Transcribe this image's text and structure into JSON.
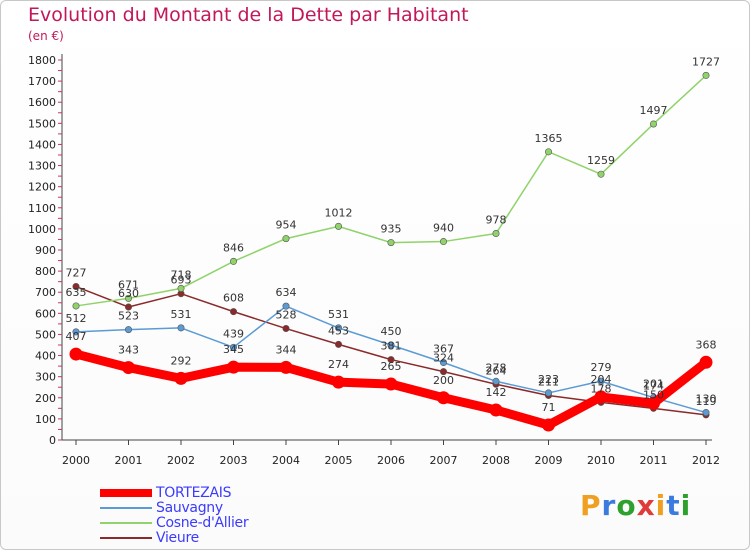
{
  "header": {
    "title": "Evolution du Montant de la Dette par Habitant",
    "subtitle": "(en €)"
  },
  "logo": {
    "text": "Proxiti",
    "colors": [
      "#f0a020",
      "#3b7be0",
      "#2ea02e",
      "#e03b3b",
      "#f0a020",
      "#3b7be0",
      "#2ea02e"
    ]
  },
  "chart_data": {
    "type": "line",
    "title": "Evolution du Montant de la Dette par Habitant",
    "subtitle": "(en €)",
    "xlabel": "",
    "ylabel": "",
    "x": [
      "2000",
      "2001",
      "2002",
      "2003",
      "2004",
      "2005",
      "2006",
      "2007",
      "2008",
      "2009",
      "2010",
      "2011",
      "2012"
    ],
    "yticks": [
      0,
      100,
      200,
      300,
      400,
      500,
      600,
      700,
      800,
      900,
      1000,
      1100,
      1200,
      1300,
      1400,
      1500,
      1600,
      1700,
      1800
    ],
    "ylim": [
      0,
      1800
    ],
    "grid": false,
    "legend_position": "bottom-left",
    "series": [
      {
        "name": "TORTEZAIS",
        "color": "#ff0000",
        "values": [
          407,
          343,
          292,
          345,
          344,
          274,
          265,
          200,
          142,
          71,
          204,
          174,
          368
        ]
      },
      {
        "name": "Sauvagny",
        "color": "#5b9bd5",
        "values": [
          512,
          523,
          531,
          439,
          634,
          531,
          450,
          367,
          278,
          223,
          279,
          201,
          130
        ]
      },
      {
        "name": "Cosne-d'Allier",
        "color": "#8fd36a",
        "values": [
          635,
          671,
          718,
          846,
          954,
          1012,
          935,
          940,
          978,
          1365,
          1259,
          1497,
          1727
        ]
      },
      {
        "name": "Vieure",
        "color": "#8b2a2a",
        "values": [
          727,
          630,
          693,
          608,
          528,
          453,
          381,
          324,
          264,
          211,
          178,
          150,
          119
        ]
      }
    ]
  }
}
